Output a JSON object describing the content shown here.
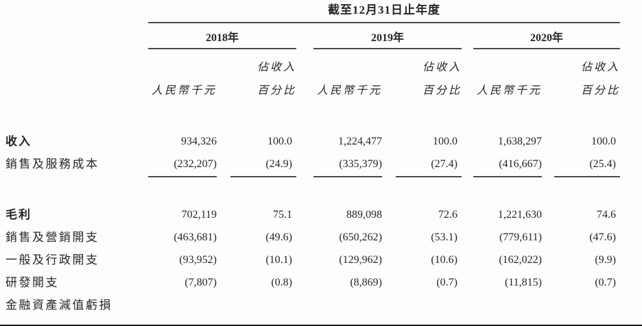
{
  "colors": {
    "text": "#262626",
    "rule": "#4a4a4a",
    "page_bottom_border": "#1b1b1b",
    "background": "#fdfdfd"
  },
  "table": {
    "period_header": "截至12月31日止年度",
    "years": [
      "2018年",
      "2019年",
      "2020年"
    ],
    "col_amount_label": "人民幣千元",
    "col_pct_label_line1": "佔收入",
    "col_pct_label_line2": "百分比",
    "rows": [
      {
        "label": "收入",
        "values": [
          "934,326",
          "100.0",
          "1,224,477",
          "100.0",
          "1,638,297",
          "100.0"
        ]
      },
      {
        "label": "銷售及服務成本",
        "values": [
          "(232,207)",
          "(24.9)",
          "(335,379)",
          "(27.4)",
          "(416,667)",
          "(25.4)"
        ]
      },
      {
        "label": "毛利",
        "values": [
          "702,119",
          "75.1",
          "889,098",
          "72.6",
          "1,221,630",
          "74.6"
        ]
      },
      {
        "label": "銷售及營銷開支",
        "values": [
          "(463,681)",
          "(49.6)",
          "(650,262)",
          "(53.1)",
          "(779,611)",
          "(47.6)"
        ]
      },
      {
        "label": "一般及行政開支",
        "values": [
          "(93,952)",
          "(10.1)",
          "(129,962)",
          "(10.6)",
          "(162,022)",
          "(9.9)"
        ]
      },
      {
        "label": "研發開支",
        "values": [
          "(7,807)",
          "(0.8)",
          "(8,869)",
          "(0.7)",
          "(11,815)",
          "(0.7)"
        ]
      },
      {
        "label": "金融資產減值虧損",
        "values": [
          "",
          "",
          "",
          "",
          "",
          ""
        ]
      }
    ]
  }
}
